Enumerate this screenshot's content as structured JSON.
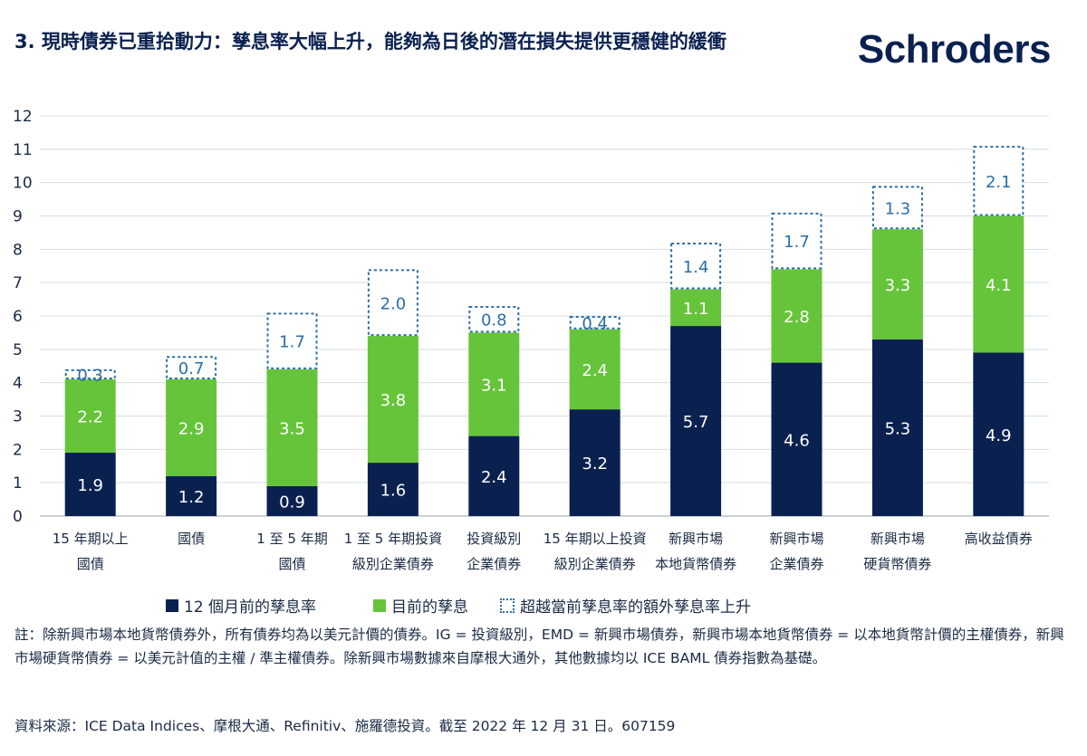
{
  "title": "3. 現時債券已重拾動力：孳息率大幅上升，能夠為日後的潛在損失提供更穩健的緩衝",
  "brand": {
    "logo_text": "Schroders",
    "color": "#0a2150"
  },
  "colors": {
    "prev": "#0a2150",
    "curr": "#66c43a",
    "extra": "#2b6ea8"
  },
  "legend": {
    "prev": "12 個月前的孳息率",
    "curr": "目前的孳息",
    "extra": "超越當前孳息率的額外孳息率上升"
  },
  "chart_data": {
    "type": "bar",
    "stacked": true,
    "categories": [
      [
        "15 年期以上",
        "國債"
      ],
      [
        "國債"
      ],
      [
        "1 至 5 年期",
        "國債"
      ],
      [
        "1 至 5 年期投資",
        "級別企業債券"
      ],
      [
        "投資級別",
        "企業債券"
      ],
      [
        "15 年期以上投資",
        "級別企業債券"
      ],
      [
        "新興市場",
        "本地貨幣債券"
      ],
      [
        "新興市場",
        "企業債券"
      ],
      [
        "新興市場",
        "硬貨幣債券"
      ],
      [
        "高收益債券"
      ]
    ],
    "series": [
      {
        "name": "12 個月前的孳息率",
        "values": [
          1.9,
          1.2,
          0.9,
          1.6,
          2.4,
          3.2,
          5.7,
          4.6,
          5.3,
          4.9
        ]
      },
      {
        "name": "目前的孳息",
        "values": [
          2.2,
          2.9,
          3.5,
          3.8,
          3.1,
          2.4,
          1.1,
          2.8,
          3.3,
          4.1
        ]
      },
      {
        "name": "超越當前孳息率的額外孳息率上升",
        "values": [
          0.3,
          0.7,
          1.7,
          2.0,
          0.8,
          0.4,
          1.4,
          1.7,
          1.3,
          2.1
        ]
      }
    ],
    "ylim": [
      0,
      12
    ],
    "yticks": [
      "0",
      "1",
      "2",
      "3",
      "4",
      "5",
      "6",
      "7",
      "8",
      "9",
      "10",
      "11",
      "12"
    ],
    "grid": true
  },
  "notes": "註：除新興市場本地貨幣債券外，所有債券均為以美元計價的債券。IG = 投資級別，EMD = 新興市場債券，新興市場本地貨幣債券 = 以本地貨幣計價的主權債券，新興市場硬貨幣債券 = 以美元計值的主權 / 準主權債券。除新興市場數據來自摩根大通外，其他數據均以 ICE BAML 債券指數為基礎。",
  "source": "資料來源：ICE Data Indices、摩根大通、Refinitiv、施羅德投資。截至 2022 年 12 月 31 日。607159"
}
